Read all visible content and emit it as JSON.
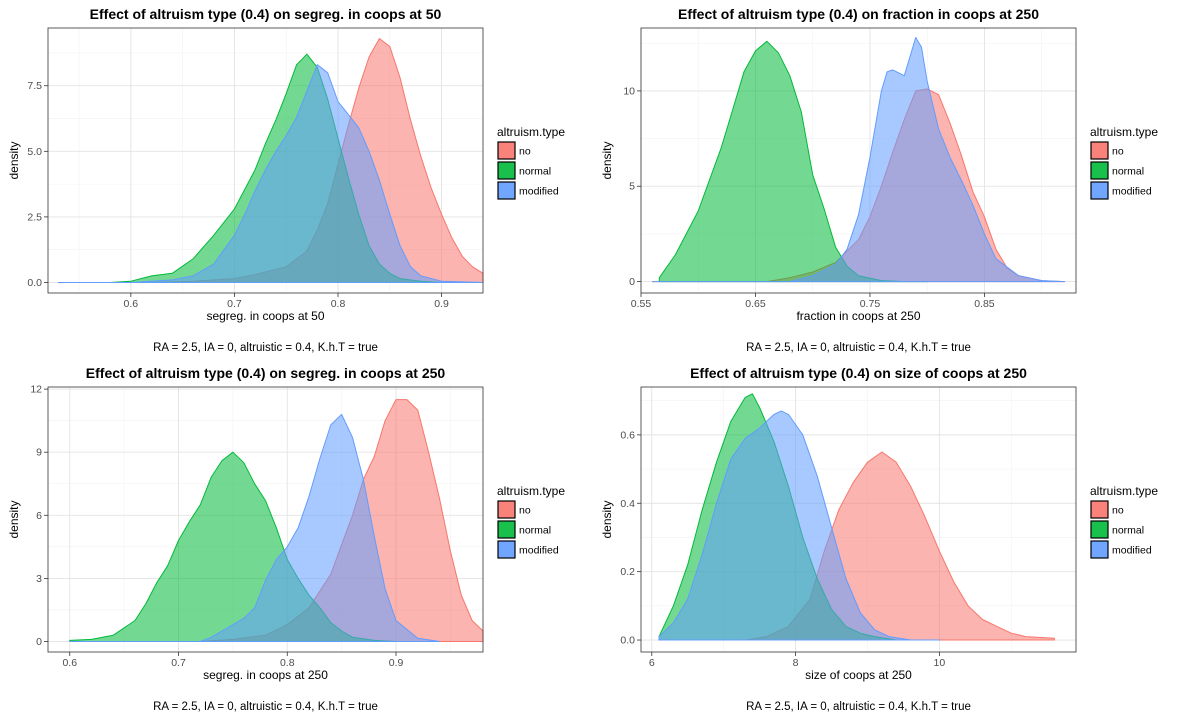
{
  "legend_title": "altruism.type",
  "caption": "RA = 2.5, IA = 0, altruistic = 0.4, K.h.T = true",
  "series_colors": {
    "no": "#F8766D",
    "normal": "#00BA38",
    "modified": "#619CFF"
  },
  "chart_data": [
    {
      "type": "area",
      "title": "Effect of altruism type (0.4) on segreg. in coops at 50",
      "xlabel": "segreg. in coops at 50",
      "ylabel": "density",
      "xlim": [
        0.52,
        0.94
      ],
      "ylim": [
        -0.4,
        9.7
      ],
      "xticks": [
        0.6,
        0.7,
        0.8,
        0.9
      ],
      "xticklabels": [
        "0.6",
        "0.7",
        "0.8",
        "0.9"
      ],
      "yticks": [
        0,
        2.5,
        5,
        7.5
      ],
      "yticklabels": [
        "0.0",
        "2.5",
        "5.0",
        "7.5"
      ],
      "legend": [
        "no",
        "normal",
        "modified"
      ],
      "series": [
        {
          "name": "no",
          "x": [
            0.53,
            0.62,
            0.66,
            0.7,
            0.72,
            0.75,
            0.77,
            0.78,
            0.79,
            0.8,
            0.81,
            0.82,
            0.83,
            0.84,
            0.85,
            0.86,
            0.87,
            0.88,
            0.89,
            0.9,
            0.91,
            0.92,
            0.93,
            0.94
          ],
          "y": [
            0,
            0,
            0.05,
            0.15,
            0.3,
            0.6,
            1.2,
            2.0,
            3.0,
            4.5,
            6.0,
            7.4,
            8.6,
            9.3,
            9.0,
            7.8,
            6.2,
            4.8,
            3.6,
            2.6,
            1.7,
            1.0,
            0.6,
            0.35
          ]
        },
        {
          "name": "normal",
          "x": [
            0.53,
            0.58,
            0.6,
            0.62,
            0.64,
            0.66,
            0.68,
            0.7,
            0.72,
            0.73,
            0.74,
            0.75,
            0.76,
            0.77,
            0.78,
            0.79,
            0.8,
            0.81,
            0.82,
            0.83,
            0.84,
            0.85,
            0.86,
            0.88,
            0.9,
            0.94
          ],
          "y": [
            0,
            0,
            0.05,
            0.25,
            0.35,
            0.9,
            1.8,
            2.8,
            4.3,
            5.3,
            6.2,
            7.2,
            8.3,
            8.7,
            8.2,
            7.0,
            5.5,
            4.0,
            2.6,
            1.4,
            0.7,
            0.35,
            0.15,
            0.05,
            0,
            0
          ]
        },
        {
          "name": "modified",
          "x": [
            0.53,
            0.6,
            0.64,
            0.66,
            0.68,
            0.7,
            0.71,
            0.72,
            0.73,
            0.74,
            0.75,
            0.76,
            0.77,
            0.78,
            0.79,
            0.8,
            0.81,
            0.82,
            0.83,
            0.84,
            0.85,
            0.86,
            0.87,
            0.88,
            0.9,
            0.94
          ],
          "y": [
            0,
            0,
            0.1,
            0.25,
            0.7,
            1.8,
            2.6,
            3.5,
            4.3,
            5.0,
            5.6,
            6.3,
            7.3,
            8.3,
            8.0,
            6.9,
            6.4,
            5.9,
            5.0,
            3.9,
            2.6,
            1.4,
            0.6,
            0.25,
            0.05,
            0
          ]
        }
      ]
    },
    {
      "type": "area",
      "title": "Effect of altruism type (0.4) on fraction in coops at 250",
      "xlabel": "fraction in coops at 250",
      "ylabel": "density",
      "xlim": [
        0.55,
        0.93
      ],
      "ylim": [
        -0.6,
        13.3
      ],
      "xticks": [
        0.55,
        0.65,
        0.75,
        0.85
      ],
      "xticklabels": [
        "0.55",
        "0.65",
        "0.75",
        "0.85"
      ],
      "yticks": [
        0,
        5,
        10
      ],
      "yticklabels": [
        "0",
        "5",
        "10"
      ],
      "legend": [
        "no",
        "normal",
        "modified"
      ],
      "series": [
        {
          "name": "no",
          "x": [
            0.56,
            0.66,
            0.68,
            0.7,
            0.72,
            0.74,
            0.75,
            0.76,
            0.77,
            0.78,
            0.79,
            0.8,
            0.81,
            0.82,
            0.83,
            0.84,
            0.85,
            0.86,
            0.87,
            0.88,
            0.9,
            0.92
          ],
          "y": [
            0,
            0,
            0.2,
            0.5,
            1.0,
            2.2,
            3.4,
            5.0,
            6.8,
            8.5,
            10.0,
            10.1,
            9.8,
            8.3,
            6.6,
            4.7,
            3.4,
            1.7,
            0.7,
            0.3,
            0.05,
            0
          ]
        },
        {
          "name": "normal",
          "x": [
            0.566,
            0.58,
            0.6,
            0.62,
            0.63,
            0.64,
            0.65,
            0.66,
            0.67,
            0.68,
            0.69,
            0.7,
            0.71,
            0.72,
            0.73,
            0.74,
            0.76,
            0.78,
            0.8
          ],
          "y": [
            0.2,
            1.4,
            3.7,
            7.0,
            9.0,
            11.0,
            12.1,
            12.6,
            12.0,
            10.8,
            8.9,
            5.6,
            3.8,
            1.8,
            0.8,
            0.3,
            0.05,
            0,
            0
          ]
        },
        {
          "name": "modified",
          "x": [
            0.56,
            0.68,
            0.7,
            0.72,
            0.73,
            0.74,
            0.75,
            0.76,
            0.765,
            0.77,
            0.78,
            0.79,
            0.795,
            0.8,
            0.81,
            0.82,
            0.83,
            0.84,
            0.85,
            0.86,
            0.88,
            0.9,
            0.92
          ],
          "y": [
            0,
            0,
            0.3,
            0.9,
            1.7,
            3.5,
            6.5,
            10.0,
            11.0,
            11.1,
            10.8,
            12.8,
            12.3,
            10.5,
            8.0,
            6.5,
            5.3,
            4.0,
            2.5,
            1.2,
            0.3,
            0.05,
            0
          ]
        }
      ]
    },
    {
      "type": "area",
      "title": "Effect of altruism type (0.4) on segreg. in coops at 250",
      "xlabel": "segreg. in coops at 250",
      "ylabel": "density",
      "xlim": [
        0.58,
        0.98
      ],
      "ylim": [
        -0.5,
        12.1
      ],
      "xticks": [
        0.6,
        0.7,
        0.8,
        0.9
      ],
      "xticklabels": [
        "0.6",
        "0.7",
        "0.8",
        "0.9"
      ],
      "yticks": [
        0,
        3,
        6,
        9,
        12
      ],
      "yticklabels": [
        "0",
        "3",
        "6",
        "9",
        "12"
      ],
      "legend": [
        "no",
        "normal",
        "modified"
      ],
      "series": [
        {
          "name": "no",
          "x": [
            0.6,
            0.72,
            0.75,
            0.78,
            0.8,
            0.82,
            0.84,
            0.85,
            0.86,
            0.87,
            0.88,
            0.89,
            0.9,
            0.91,
            0.92,
            0.93,
            0.94,
            0.95,
            0.96,
            0.97,
            0.98
          ],
          "y": [
            0,
            0,
            0.1,
            0.3,
            0.8,
            1.6,
            3.2,
            4.6,
            6.0,
            7.7,
            8.8,
            10.5,
            11.5,
            11.5,
            11.0,
            9.0,
            6.8,
            4.3,
            2.2,
            1.0,
            0.5
          ]
        },
        {
          "name": "normal",
          "x": [
            0.6,
            0.62,
            0.64,
            0.66,
            0.67,
            0.68,
            0.69,
            0.7,
            0.71,
            0.72,
            0.73,
            0.74,
            0.75,
            0.76,
            0.77,
            0.78,
            0.79,
            0.8,
            0.81,
            0.82,
            0.83,
            0.84,
            0.85,
            0.86,
            0.88,
            0.9
          ],
          "y": [
            0.05,
            0.1,
            0.3,
            1.0,
            1.8,
            2.8,
            3.6,
            4.8,
            5.7,
            6.5,
            7.8,
            8.6,
            9.0,
            8.5,
            7.5,
            6.7,
            5.4,
            3.9,
            3.0,
            2.2,
            1.6,
            0.9,
            0.5,
            0.2,
            0.05,
            0
          ]
        },
        {
          "name": "modified",
          "x": [
            0.6,
            0.72,
            0.73,
            0.74,
            0.75,
            0.76,
            0.77,
            0.78,
            0.79,
            0.8,
            0.81,
            0.82,
            0.83,
            0.84,
            0.85,
            0.86,
            0.87,
            0.88,
            0.89,
            0.9,
            0.92,
            0.94
          ],
          "y": [
            0,
            0,
            0.2,
            0.5,
            0.8,
            1.1,
            1.6,
            2.9,
            3.9,
            4.5,
            5.4,
            6.9,
            8.7,
            10.3,
            10.8,
            9.7,
            7.7,
            5.0,
            2.5,
            1.0,
            0.15,
            0
          ]
        }
      ]
    },
    {
      "type": "area",
      "title": "Effect of altruism type (0.4) on size of coops at 250",
      "xlabel": "size of coops at 250",
      "ylabel": "density",
      "xlim": [
        5.85,
        11.9
      ],
      "ylim": [
        -0.035,
        0.74
      ],
      "xticks": [
        6,
        8,
        10
      ],
      "xticklabels": [
        "6",
        "8",
        "10"
      ],
      "yticks": [
        0,
        0.2,
        0.4,
        0.6
      ],
      "yticklabels": [
        "0.0",
        "0.2",
        "0.4",
        "0.6"
      ],
      "legend": [
        "no",
        "normal",
        "modified"
      ],
      "series": [
        {
          "name": "no",
          "x": [
            6.1,
            7.3,
            7.6,
            7.9,
            8.2,
            8.4,
            8.6,
            8.8,
            9.0,
            9.2,
            9.4,
            9.6,
            9.8,
            10.0,
            10.2,
            10.4,
            10.6,
            10.8,
            11.0,
            11.2,
            11.6
          ],
          "y": [
            0,
            0,
            0.01,
            0.04,
            0.12,
            0.26,
            0.38,
            0.46,
            0.52,
            0.55,
            0.52,
            0.45,
            0.36,
            0.26,
            0.17,
            0.1,
            0.06,
            0.04,
            0.02,
            0.01,
            0.005
          ]
        },
        {
          "name": "normal",
          "x": [
            6.1,
            6.3,
            6.5,
            6.7,
            6.9,
            7.1,
            7.3,
            7.4,
            7.5,
            7.7,
            7.9,
            8.1,
            8.3,
            8.5,
            8.7,
            8.9,
            9.1,
            9.4,
            9.8
          ],
          "y": [
            0.01,
            0.1,
            0.22,
            0.38,
            0.52,
            0.64,
            0.71,
            0.72,
            0.68,
            0.58,
            0.45,
            0.3,
            0.18,
            0.09,
            0.04,
            0.02,
            0.01,
            0,
            0
          ]
        },
        {
          "name": "modified",
          "x": [
            6.1,
            6.3,
            6.5,
            6.7,
            6.9,
            7.1,
            7.3,
            7.5,
            7.7,
            7.8,
            7.9,
            8.1,
            8.3,
            8.5,
            8.7,
            8.9,
            9.1,
            9.3,
            9.6,
            10.0
          ],
          "y": [
            0.01,
            0.05,
            0.12,
            0.25,
            0.4,
            0.53,
            0.59,
            0.62,
            0.66,
            0.67,
            0.66,
            0.6,
            0.48,
            0.33,
            0.18,
            0.08,
            0.03,
            0.01,
            0,
            0
          ]
        }
      ]
    }
  ]
}
